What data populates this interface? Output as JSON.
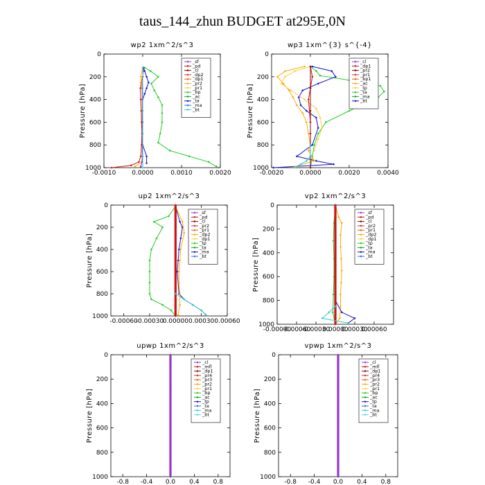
{
  "page": {
    "title": "taus_144_zhun  BUDGET at295E,0N"
  },
  "chart_data": [
    {
      "type": "line",
      "title": "wp2  1xm^2/s^3",
      "ylabel": "Pressure [hPa]",
      "xlim": [
        -0.001,
        0.002
      ],
      "ylim": [
        1000,
        0
      ],
      "xticks": [
        "-0.0010",
        "0.0000",
        "0.0010",
        "0.0020"
      ],
      "yticks": [
        "0",
        "200",
        "400",
        "600",
        "800",
        "1000"
      ],
      "legend": [
        "_sf",
        "_pd",
        "_cl",
        "_dp2",
        "_dp1",
        "_pr2",
        "_pr1",
        "_bp",
        "_ac",
        "_ta",
        "_ma",
        "_bt"
      ],
      "series": [
        {
          "name": "_cl",
          "color": "#cc1111",
          "x": [
            2e-05,
            1e-05,
            0.0,
            -4e-05,
            -6e-05,
            -5e-05,
            -4e-05,
            -3e-05,
            -2e-05,
            -3e-05,
            -5e-05,
            -0.0001,
            -0.0003,
            -0.0008
          ],
          "y": [
            120,
            150,
            200,
            250,
            300,
            400,
            500,
            600,
            700,
            800,
            900,
            950,
            980,
            1000
          ]
        },
        {
          "name": "_bp",
          "color": "#22cc22",
          "x": [
            5e-05,
            0.0002,
            0.0004,
            0.00022,
            0.0003,
            0.0004,
            0.0005,
            0.0005,
            0.0005,
            0.00045,
            0.0004,
            0.0007,
            0.0012,
            0.0017,
            0.0019
          ],
          "y": [
            120,
            150,
            200,
            260,
            320,
            380,
            450,
            520,
            600,
            700,
            780,
            850,
            900,
            950,
            990
          ]
        },
        {
          "name": "_ac",
          "color": "#1111cc",
          "x": [
            2e-05,
            5e-05,
            0.0001,
            0.00015,
            0.0001,
            5e-05,
            0.0,
            0.0,
            0.0,
            0.0,
            0.0,
            0.0001,
            0.0001
          ],
          "y": [
            120,
            150,
            200,
            250,
            300,
            350,
            400,
            500,
            600,
            700,
            800,
            900,
            960
          ]
        },
        {
          "name": "_pr1",
          "color": "#ffaa00",
          "x": [
            0.0,
            -5e-05,
            -2e-05,
            0.0,
            0.0,
            0.0,
            0.0,
            -2e-05,
            -0.0002
          ],
          "y": [
            120,
            200,
            300,
            400,
            600,
            800,
            900,
            950,
            990
          ]
        },
        {
          "name": "_pd",
          "color": "#9922aa",
          "x": [
            1e-05,
            0.0,
            -1e-05,
            -1e-05,
            -1e-05,
            -1e-05,
            -1e-05,
            -2e-05,
            -5e-05
          ],
          "y": [
            120,
            200,
            300,
            400,
            600,
            800,
            900,
            950,
            990
          ]
        },
        {
          "name": "_bt",
          "color": "#33cccc",
          "x": [
            0.0,
            0.0,
            0.0,
            0.0,
            0.0,
            0.0
          ],
          "y": [
            120,
            300,
            500,
            700,
            900,
            1000
          ]
        }
      ]
    },
    {
      "type": "line",
      "title": "wp3  1xm^{3} s^{-4}",
      "ylabel": "Pressure [hPa]",
      "xlim": [
        -0.002,
        0.004
      ],
      "ylim": [
        1000,
        0
      ],
      "xticks": [
        "-0.0020",
        "0.0000",
        "0.0020",
        "0.0040"
      ],
      "yticks": [
        "0",
        "200",
        "400",
        "600",
        "800",
        "1000"
      ],
      "legend": [
        "_cl",
        "_dp1",
        "_pr2",
        "_pr1",
        "_bp1",
        "_ac",
        "_tp",
        "_ta",
        "_ma",
        "_bt"
      ],
      "series": [
        {
          "name": "_ac",
          "color": "#22cc22",
          "x": [
            0.0,
            0.0003,
            0.0005,
            0.002,
            0.0036,
            0.0038,
            0.0035,
            0.003,
            0.002,
            0.0008,
            0.0004,
            0.0002,
            0.0001,
            0.0
          ],
          "y": [
            110,
            150,
            190,
            230,
            280,
            330,
            380,
            420,
            500,
            600,
            700,
            800,
            900,
            1000
          ]
        },
        {
          "name": "_tp",
          "color": "#1111cc",
          "x": [
            0.0001,
            0.0011,
            0.0013,
            0.0004,
            -0.0004,
            -0.0006,
            -0.0005,
            -0.0002,
            0.0003,
            0.0004,
            0.0001,
            -0.0007,
            0.0003,
            0.0012,
            -0.0019
          ],
          "y": [
            110,
            150,
            200,
            260,
            320,
            380,
            450,
            500,
            560,
            650,
            800,
            900,
            940,
            970,
            1000
          ]
        },
        {
          "name": "_pr1",
          "color": "#ffaa00",
          "x": [
            -0.0003,
            -0.0013,
            -0.0017,
            -0.0014,
            -0.0011,
            -0.0009,
            -0.0007,
            -0.0004,
            -0.0002,
            -0.0001,
            0.0,
            -0.0001,
            0.0002,
            -0.0008
          ],
          "y": [
            110,
            150,
            200,
            260,
            320,
            380,
            450,
            520,
            600,
            700,
            800,
            850,
            940,
            990
          ]
        },
        {
          "name": "_pr2",
          "color": "#ffcc44",
          "x": [
            0.0,
            -0.0008,
            -0.0013,
            -0.0015,
            -0.001,
            -0.0003,
            0.0003,
            0.0005,
            0.0006,
            0.0004,
            0.0002
          ],
          "y": [
            110,
            150,
            200,
            260,
            320,
            400,
            480,
            560,
            650,
            750,
            850
          ]
        },
        {
          "name": "_cl",
          "color": "#cc1111",
          "x": [
            0.0,
            0.0001,
            0.0,
            -0.0001,
            0.0,
            0.0,
            0.0,
            0.0
          ],
          "y": [
            110,
            200,
            300,
            400,
            600,
            800,
            900,
            1000
          ]
        },
        {
          "name": "_dp1",
          "color": "#8b0000",
          "x": [
            0.0,
            0.0,
            0.0,
            0.0,
            0.0,
            0.0
          ],
          "y": [
            110,
            300,
            500,
            700,
            900,
            1000
          ]
        },
        {
          "name": "_ta",
          "color": "#33cccc",
          "x": [
            0.0,
            0.0,
            0.0,
            -0.0002,
            -0.0005,
            -0.0008
          ],
          "y": [
            800,
            850,
            900,
            940,
            970,
            1000
          ]
        }
      ]
    },
    {
      "type": "line",
      "title": "up2  1xm^2/s^3",
      "ylabel": "Pressure [hPa]",
      "xlim": [
        -0.00075,
        0.0006
      ],
      "ylim": [
        1000,
        0
      ],
      "xticks": [
        "-0.00060",
        "-0.00030",
        "0.00000",
        "0.00030",
        "0.00060"
      ],
      "yticks": [
        "0",
        "200",
        "400",
        "600",
        "800",
        "1000"
      ],
      "legend": [
        "_sf",
        "_pd",
        "_cl",
        "_pr2",
        "_pr1",
        "_dp2",
        "_dp1",
        "_tp",
        "_ta",
        "_ma",
        "_bt"
      ],
      "series": [
        {
          "name": "_dp2",
          "color": "#22cc22",
          "x": [
            0.0,
            -8e-05,
            -0.00025,
            -0.00015,
            -0.00022,
            -0.00028,
            -0.0003,
            -0.0003,
            -0.0003,
            -0.0003,
            -0.00028,
            -0.00015,
            -5e-05,
            0.0
          ],
          "y": [
            10,
            100,
            150,
            200,
            300,
            400,
            500,
            600,
            700,
            800,
            850,
            900,
            950,
            1000
          ]
        },
        {
          "name": "_tp",
          "color": "#1111cc",
          "x": [
            0.0,
            5e-05,
            8e-05,
            6e-05,
            4e-05,
            3e-05,
            2e-05,
            4e-05,
            0.0001,
            0.0002,
            0.0003,
            0.00035
          ],
          "y": [
            10,
            150,
            200,
            300,
            400,
            500,
            600,
            800,
            850,
            900,
            950,
            990
          ]
        },
        {
          "name": "_pr1",
          "color": "#ffaa00",
          "x": [
            0.0,
            8e-05,
            0.0001,
            6e-05,
            5e-05,
            4e-05,
            4e-05,
            5e-05,
            5e-05,
            3e-05
          ],
          "y": [
            10,
            150,
            250,
            400,
            500,
            600,
            700,
            800,
            900,
            990
          ]
        },
        {
          "name": "_cl",
          "color": "#cc1111",
          "x": [
            0.0,
            0.0,
            0.0,
            0.0,
            0.0,
            0.0,
            0.0,
            0.0,
            0.0,
            0.0,
            0.0,
            0.0
          ],
          "y": [
            0,
            50,
            100,
            200,
            300,
            400,
            500,
            600,
            700,
            800,
            900,
            1000
          ]
        },
        {
          "name": "_ta",
          "color": "#33cccc",
          "x": [
            0.0,
            0.0001,
            0.0002,
            0.0003,
            0.00035
          ],
          "y": [
            800,
            850,
            900,
            950,
            990
          ]
        }
      ]
    },
    {
      "type": "line",
      "title": "vp2  1xm^2/s^3",
      "ylabel": "Pressure [hPa]",
      "xlim": [
        -0.0009,
        0.0009
      ],
      "ylim": [
        1000,
        0
      ],
      "xticks": [
        "-0.00090",
        "-0.00060",
        "-0.00030",
        "0.00000",
        "0.00030",
        "0.00060"
      ],
      "yticks": [
        "0",
        "200",
        "400",
        "600",
        "800",
        "1000"
      ],
      "legend": [
        "_sf",
        "_pd",
        "_cl",
        "_pr2",
        "_pr1",
        "_dp2",
        "_dp1",
        "_tp",
        "_ta",
        "_ma",
        "_bt"
      ],
      "series": [
        {
          "name": "_pr1",
          "color": "#ffaa00",
          "x": [
            0.0,
            5e-05,
            0.0001,
            8e-05,
            8e-05,
            9e-05,
            0.0001,
            9e-05,
            8e-05,
            8e-05,
            7e-05,
            0.0
          ],
          "y": [
            0,
            100,
            150,
            250,
            350,
            450,
            550,
            650,
            750,
            850,
            950,
            1000
          ]
        },
        {
          "name": "_dp2",
          "color": "#22cc22",
          "x": [
            0.0,
            -2e-05,
            -3e-05,
            -2e-05,
            -2e-05,
            -3e-05,
            -4e-05,
            0.0
          ],
          "y": [
            0,
            150,
            300,
            450,
            600,
            750,
            900,
            1000
          ]
        },
        {
          "name": "_tp",
          "color": "#1111cc",
          "x": [
            0.0,
            0.0,
            0.0,
            0.0001,
            0.0003,
            0.0002
          ],
          "y": [
            0,
            400,
            800,
            900,
            950,
            990
          ]
        },
        {
          "name": "_cl",
          "color": "#cc1111",
          "x": [
            0.0,
            0.0,
            0.0,
            0.0,
            0.0,
            0.0,
            0.0,
            0.0,
            0.0,
            0.0,
            0.0,
            0.0
          ],
          "y": [
            0,
            50,
            100,
            200,
            300,
            400,
            500,
            600,
            700,
            800,
            900,
            1000
          ]
        },
        {
          "name": "_ta",
          "color": "#33cccc",
          "x": [
            0.0,
            -0.0001,
            -0.0002,
            0.0002
          ],
          "y": [
            850,
            900,
            950,
            990
          ]
        }
      ]
    },
    {
      "type": "line",
      "title": "upwp  1xm^2/s^3",
      "ylabel": "Pressure [hPa]",
      "xlim": [
        -1,
        1
      ],
      "ylim": [
        1000,
        0
      ],
      "xticks": [
        "-0.8",
        "-0.4",
        "0.0",
        "0.4",
        "0.8"
      ],
      "yticks": [
        "0",
        "200",
        "400",
        "600",
        "800",
        "1000"
      ],
      "legend": [
        "_cl",
        "_mfl",
        "_dp1",
        "_pr4",
        "_pr3",
        "_pr2",
        "_pr1",
        "_bp",
        "_ac",
        "_tp",
        "_ta",
        "_ma",
        "_bt"
      ],
      "series": [
        {
          "name": "_bt",
          "color": "#33cccc",
          "x": [
            0,
            0,
            0,
            0,
            0,
            0,
            0,
            0,
            0,
            0,
            0
          ],
          "y": [
            0,
            100,
            200,
            300,
            400,
            500,
            600,
            700,
            800,
            900,
            1000
          ]
        },
        {
          "name": "_cl",
          "color": "#9933cc",
          "x": [
            0,
            0,
            0,
            0,
            0,
            0,
            0,
            0,
            0,
            0,
            0,
            0,
            0,
            0,
            0,
            0,
            0,
            0,
            0,
            0,
            0
          ],
          "y": [
            0,
            50,
            100,
            150,
            200,
            250,
            300,
            350,
            400,
            450,
            500,
            550,
            600,
            650,
            700,
            750,
            800,
            850,
            900,
            950,
            1000
          ]
        }
      ]
    },
    {
      "type": "line",
      "title": "vpwp  1xm^2/s^3",
      "ylabel": "Pressure [hPa]",
      "xlim": [
        -1,
        1
      ],
      "ylim": [
        1000,
        0
      ],
      "xticks": [
        "-0.8",
        "-0.4",
        "0.0",
        "0.4",
        "0.8"
      ],
      "yticks": [
        "0",
        "200",
        "400",
        "600",
        "800",
        "1000"
      ],
      "legend": [
        "_cl",
        "_mfl",
        "_dp1",
        "_pr4",
        "_pr3",
        "_pr2",
        "_pr1",
        "_bp",
        "_ac",
        "_tp",
        "_ta",
        "_ma",
        "_bt"
      ],
      "series": [
        {
          "name": "_bt",
          "color": "#33cccc",
          "x": [
            0,
            0,
            0,
            0,
            0,
            0,
            0,
            0,
            0,
            0,
            0
          ],
          "y": [
            0,
            100,
            200,
            300,
            400,
            500,
            600,
            700,
            800,
            900,
            1000
          ]
        },
        {
          "name": "_cl",
          "color": "#9933cc",
          "x": [
            0,
            0,
            0,
            0,
            0,
            0,
            0,
            0,
            0,
            0,
            0,
            0,
            0,
            0,
            0,
            0,
            0,
            0,
            0,
            0,
            0
          ],
          "y": [
            0,
            50,
            100,
            150,
            200,
            250,
            300,
            350,
            400,
            450,
            500,
            550,
            600,
            650,
            700,
            750,
            800,
            850,
            900,
            950,
            1000
          ]
        }
      ]
    }
  ]
}
